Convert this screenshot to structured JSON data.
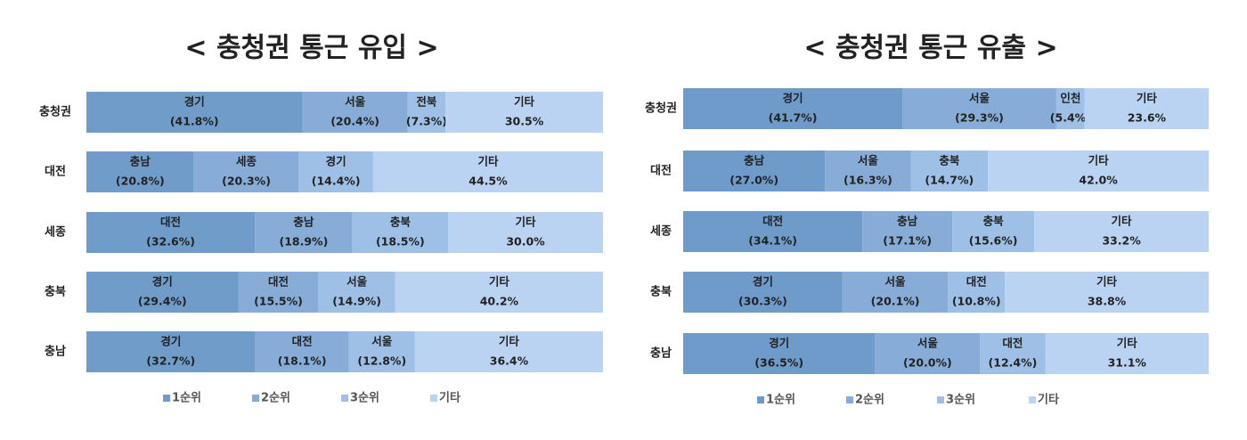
{
  "chart_data": [
    {
      "type": "bar",
      "orientation": "horizontal",
      "stacked": true,
      "title": "< 충청권 통근 유입 >",
      "categories": [
        "충청권",
        "대전",
        "세종",
        "충북",
        "충남"
      ],
      "xlim": [
        0,
        100
      ],
      "series": [
        {
          "name": "1순위",
          "color": "#709cca",
          "places": [
            "경기",
            "충남",
            "대전",
            "경기",
            "경기"
          ],
          "values": [
            41.8,
            20.8,
            32.6,
            29.4,
            32.7
          ],
          "value_labels": [
            "(41.8%)",
            "(20.8%)",
            "(32.6%)",
            "(29.4%)",
            "(32.7%)"
          ]
        },
        {
          "name": "2순위",
          "color": "#86acd7",
          "places": [
            "서울",
            "세종",
            "충남",
            "대전",
            "대전"
          ],
          "values": [
            20.4,
            20.3,
            18.9,
            15.5,
            18.1
          ],
          "value_labels": [
            "(20.4%)",
            "(20.3%)",
            "(18.9%)",
            "(15.5%)",
            "(18.1%)"
          ]
        },
        {
          "name": "3순위",
          "color": "#9ec0e7",
          "places": [
            "전북",
            "경기",
            "충북",
            "서울",
            "서울"
          ],
          "values": [
            7.3,
            14.4,
            18.5,
            14.9,
            12.8
          ],
          "value_labels": [
            "(7.3%)",
            "(14.4%)",
            "(18.5%)",
            "(14.9%)",
            "(12.8%)"
          ]
        },
        {
          "name": "기타",
          "color": "#bad3f2",
          "places": [
            "기타",
            "기타",
            "기타",
            "기타",
            "기타"
          ],
          "values": [
            30.5,
            44.5,
            30.0,
            40.2,
            36.4
          ],
          "value_labels": [
            "30.5%",
            "44.5%",
            "30.0%",
            "40.2%",
            "36.4%"
          ]
        }
      ]
    },
    {
      "type": "bar",
      "orientation": "horizontal",
      "stacked": true,
      "title": "< 충청권 통근 유출 >",
      "categories": [
        "충청권",
        "대전",
        "세종",
        "충북",
        "충남"
      ],
      "xlim": [
        0,
        100
      ],
      "series": [
        {
          "name": "1순위",
          "color": "#6e9bc9",
          "places": [
            "경기",
            "충남",
            "대전",
            "경기",
            "경기"
          ],
          "values": [
            41.7,
            27.0,
            34.1,
            30.3,
            36.5
          ],
          "value_labels": [
            "(41.7%)",
            "(27.0%)",
            "(34.1%)",
            "(30.3%)",
            "(36.5%)"
          ]
        },
        {
          "name": "2순위",
          "color": "#86acd7",
          "places": [
            "서울",
            "서울",
            "충남",
            "서울",
            "서울"
          ],
          "values": [
            29.3,
            16.3,
            17.1,
            20.1,
            20.0
          ],
          "value_labels": [
            "(29.3%)",
            "(16.3%)",
            "(17.1%)",
            "(20.1%)",
            "(20.0%)"
          ]
        },
        {
          "name": "3순위",
          "color": "#9ec0e7",
          "places": [
            "인천",
            "충북",
            "충북",
            "대전",
            "대전"
          ],
          "values": [
            5.4,
            14.7,
            15.6,
            10.8,
            12.4
          ],
          "value_labels": [
            "(5.4%)",
            "(14.7%)",
            "(15.6%)",
            "(10.8%)",
            "(12.4%)"
          ]
        },
        {
          "name": "기타",
          "color": "#bad3f2",
          "places": [
            "기타",
            "기타",
            "기타",
            "기타",
            "기타"
          ],
          "values": [
            23.6,
            42.0,
            33.2,
            38.8,
            31.1
          ],
          "value_labels": [
            "23.6%",
            "42.0%",
            "33.2%",
            "38.8%",
            "31.1%"
          ]
        }
      ]
    }
  ]
}
